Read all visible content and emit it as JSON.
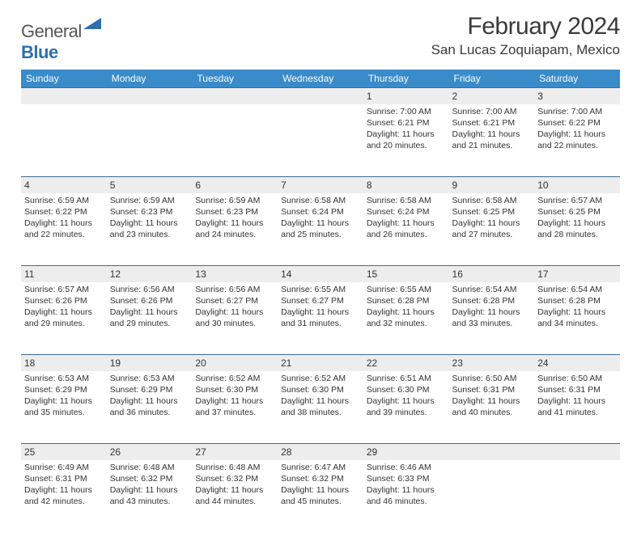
{
  "brand": {
    "first": "General",
    "second": "Blue"
  },
  "title": "February 2024",
  "location": "San Lucas Zoquiapam, Mexico",
  "columns": [
    "Sunday",
    "Monday",
    "Tuesday",
    "Wednesday",
    "Thursday",
    "Friday",
    "Saturday"
  ],
  "colors": {
    "header_bg": "#3a8bc9",
    "header_text": "#ffffff",
    "daynum_bg": "#ededed",
    "rule": "#3a6c9a",
    "logo_blue": "#2f6fab",
    "text": "#333333"
  },
  "weeks": [
    [
      null,
      null,
      null,
      null,
      {
        "n": "1",
        "sr": "7:00 AM",
        "ss": "6:21 PM",
        "dh": 11,
        "dm": 20
      },
      {
        "n": "2",
        "sr": "7:00 AM",
        "ss": "6:21 PM",
        "dh": 11,
        "dm": 21
      },
      {
        "n": "3",
        "sr": "7:00 AM",
        "ss": "6:22 PM",
        "dh": 11,
        "dm": 22
      }
    ],
    [
      {
        "n": "4",
        "sr": "6:59 AM",
        "ss": "6:22 PM",
        "dh": 11,
        "dm": 22
      },
      {
        "n": "5",
        "sr": "6:59 AM",
        "ss": "6:23 PM",
        "dh": 11,
        "dm": 23
      },
      {
        "n": "6",
        "sr": "6:59 AM",
        "ss": "6:23 PM",
        "dh": 11,
        "dm": 24
      },
      {
        "n": "7",
        "sr": "6:58 AM",
        "ss": "6:24 PM",
        "dh": 11,
        "dm": 25
      },
      {
        "n": "8",
        "sr": "6:58 AM",
        "ss": "6:24 PM",
        "dh": 11,
        "dm": 26
      },
      {
        "n": "9",
        "sr": "6:58 AM",
        "ss": "6:25 PM",
        "dh": 11,
        "dm": 27
      },
      {
        "n": "10",
        "sr": "6:57 AM",
        "ss": "6:25 PM",
        "dh": 11,
        "dm": 28
      }
    ],
    [
      {
        "n": "11",
        "sr": "6:57 AM",
        "ss": "6:26 PM",
        "dh": 11,
        "dm": 29
      },
      {
        "n": "12",
        "sr": "6:56 AM",
        "ss": "6:26 PM",
        "dh": 11,
        "dm": 29
      },
      {
        "n": "13",
        "sr": "6:56 AM",
        "ss": "6:27 PM",
        "dh": 11,
        "dm": 30
      },
      {
        "n": "14",
        "sr": "6:55 AM",
        "ss": "6:27 PM",
        "dh": 11,
        "dm": 31
      },
      {
        "n": "15",
        "sr": "6:55 AM",
        "ss": "6:28 PM",
        "dh": 11,
        "dm": 32
      },
      {
        "n": "16",
        "sr": "6:54 AM",
        "ss": "6:28 PM",
        "dh": 11,
        "dm": 33
      },
      {
        "n": "17",
        "sr": "6:54 AM",
        "ss": "6:28 PM",
        "dh": 11,
        "dm": 34
      }
    ],
    [
      {
        "n": "18",
        "sr": "6:53 AM",
        "ss": "6:29 PM",
        "dh": 11,
        "dm": 35
      },
      {
        "n": "19",
        "sr": "6:53 AM",
        "ss": "6:29 PM",
        "dh": 11,
        "dm": 36
      },
      {
        "n": "20",
        "sr": "6:52 AM",
        "ss": "6:30 PM",
        "dh": 11,
        "dm": 37
      },
      {
        "n": "21",
        "sr": "6:52 AM",
        "ss": "6:30 PM",
        "dh": 11,
        "dm": 38
      },
      {
        "n": "22",
        "sr": "6:51 AM",
        "ss": "6:30 PM",
        "dh": 11,
        "dm": 39
      },
      {
        "n": "23",
        "sr": "6:50 AM",
        "ss": "6:31 PM",
        "dh": 11,
        "dm": 40
      },
      {
        "n": "24",
        "sr": "6:50 AM",
        "ss": "6:31 PM",
        "dh": 11,
        "dm": 41
      }
    ],
    [
      {
        "n": "25",
        "sr": "6:49 AM",
        "ss": "6:31 PM",
        "dh": 11,
        "dm": 42
      },
      {
        "n": "26",
        "sr": "6:48 AM",
        "ss": "6:32 PM",
        "dh": 11,
        "dm": 43
      },
      {
        "n": "27",
        "sr": "6:48 AM",
        "ss": "6:32 PM",
        "dh": 11,
        "dm": 44
      },
      {
        "n": "28",
        "sr": "6:47 AM",
        "ss": "6:32 PM",
        "dh": 11,
        "dm": 45
      },
      {
        "n": "29",
        "sr": "6:46 AM",
        "ss": "6:33 PM",
        "dh": 11,
        "dm": 46
      },
      null,
      null
    ]
  ],
  "labels": {
    "sunrise": "Sunrise:",
    "sunset": "Sunset:",
    "daylight_prefix": "Daylight:",
    "hours_word": "hours",
    "and_word": "and",
    "minutes_word": "minutes."
  }
}
